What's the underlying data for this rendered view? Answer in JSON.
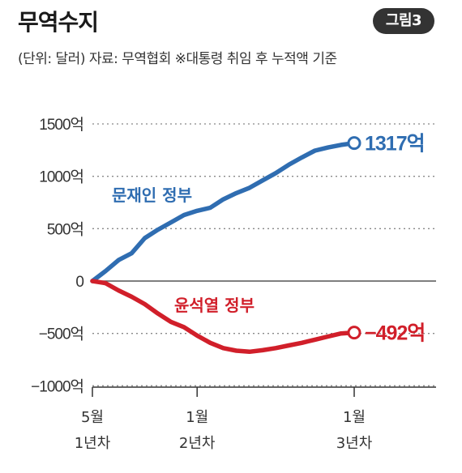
{
  "header": {
    "title": "무역수지",
    "badge": "그림3",
    "subtitle": "(단위: 달러) 자료: 무역협회 ※대통령 취임 후 누적액 기준"
  },
  "chart_data": {
    "type": "line",
    "title": "무역수지",
    "unit": "달러",
    "source": "무역협회",
    "note": "대통령 취임 후 누적액 기준",
    "y_ticks": [
      {
        "value": 1500,
        "label": "1500억"
      },
      {
        "value": 1000,
        "label": "1000억"
      },
      {
        "value": 500,
        "label": "500억"
      },
      {
        "value": 0,
        "label": "0"
      },
      {
        "value": -500,
        "label": "-500억"
      },
      {
        "value": -1000,
        "label": "-1000억"
      }
    ],
    "x_ticks": [
      {
        "month": 0,
        "line1": "5월",
        "line2": "1년차"
      },
      {
        "month": 8,
        "line1": "1월",
        "line2": "2년차"
      },
      {
        "month": 20,
        "line1": "1월",
        "line2": "3년차"
      }
    ],
    "ylim": [
      -1000,
      1500
    ],
    "xlim": [
      0,
      22
    ],
    "grid": "horizontal dotted",
    "series": [
      {
        "name": "문재인 정부",
        "color": "#2f6db1",
        "end_label": "1317억",
        "x": [
          0,
          1,
          2,
          3,
          4,
          5,
          6,
          7,
          8,
          9,
          10,
          11,
          12,
          13,
          14,
          15,
          16,
          17,
          18,
          19,
          20
        ],
        "y": [
          0,
          95,
          200,
          265,
          410,
          490,
          560,
          630,
          670,
          700,
          780,
          840,
          890,
          960,
          1030,
          1110,
          1180,
          1245,
          1275,
          1300,
          1317
        ]
      },
      {
        "name": "윤석열 정부",
        "color": "#d11f2a",
        "end_label": "-492억",
        "x": [
          0,
          1,
          2,
          3,
          4,
          5,
          6,
          7,
          8,
          9,
          10,
          11,
          12,
          13,
          14,
          15,
          16,
          17,
          18,
          19,
          20
        ],
        "y": [
          0,
          -20,
          -90,
          -150,
          -220,
          -310,
          -390,
          -440,
          -520,
          -590,
          -640,
          -665,
          -675,
          -660,
          -640,
          -615,
          -590,
          -560,
          -530,
          -500,
          -492
        ]
      }
    ]
  }
}
